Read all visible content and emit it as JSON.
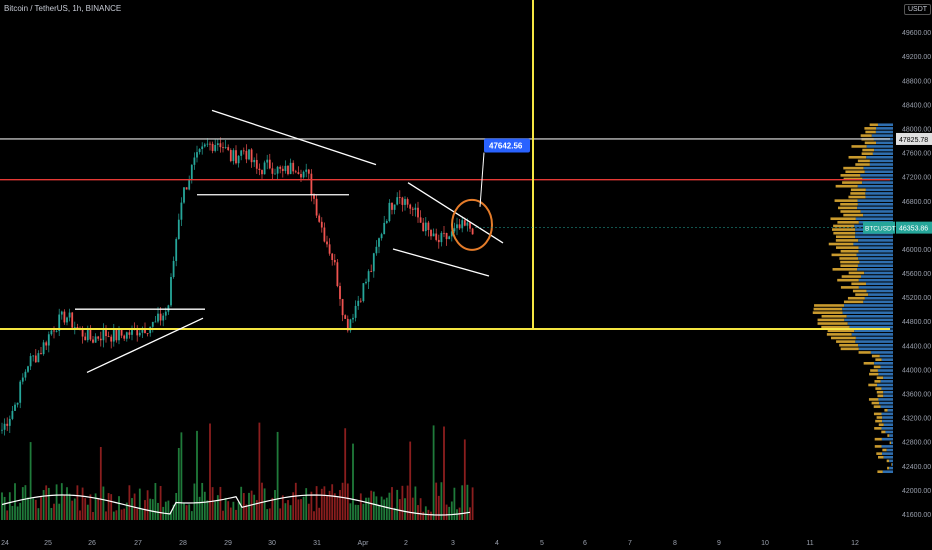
{
  "header": {
    "title": "Bitcoin / TetherUS, 1h, BINANCE",
    "quote_badge": "USDT"
  },
  "chart_data": {
    "type": "candlestick",
    "symbol": "Bitcoin / TetherUS",
    "interval": "1h",
    "exchange": "BINANCE",
    "ylim": [
      41500,
      50000
    ],
    "y_ticks": [
      41600,
      42000,
      42400,
      42800,
      43200,
      43600,
      44000,
      44400,
      44800,
      45200,
      45600,
      46000,
      46400,
      46800,
      47200,
      47600,
      48000,
      48400,
      48800,
      49200,
      49600
    ],
    "x_labels": [
      "24",
      "25",
      "26",
      "27",
      "28",
      "29",
      "30",
      "31",
      "Apr",
      "2",
      "3",
      "4",
      "5",
      "6",
      "7",
      "8",
      "9",
      "10",
      "11",
      "12"
    ],
    "price_path": [
      [
        "24",
        43000
      ],
      [
        "24",
        43400
      ],
      [
        "24",
        44100
      ],
      [
        "25",
        44300
      ],
      [
        "25",
        44700
      ],
      [
        "25",
        44900
      ],
      [
        "25",
        44650
      ],
      [
        "26",
        44500
      ],
      [
        "26",
        44600
      ],
      [
        "26",
        44550
      ],
      [
        "27",
        44600
      ],
      [
        "27",
        44700
      ],
      [
        "27",
        44750
      ],
      [
        "27",
        45000
      ],
      [
        "28",
        46800
      ],
      [
        "28",
        47400
      ],
      [
        "28",
        47700
      ],
      [
        "29",
        47800
      ],
      [
        "29",
        47500
      ],
      [
        "29",
        47650
      ],
      [
        "30",
        47300
      ],
      [
        "30",
        47400
      ],
      [
        "30",
        47250
      ],
      [
        "31",
        47400
      ],
      [
        "31",
        47200
      ],
      [
        "31",
        46400
      ],
      [
        "31",
        45800
      ],
      [
        "Apr",
        44700
      ],
      [
        "Apr",
        45200
      ],
      [
        "Apr",
        45700
      ],
      [
        "2",
        46500
      ],
      [
        "2",
        46950
      ],
      [
        "2",
        46700
      ],
      [
        "2",
        46400
      ],
      [
        "3",
        46100
      ],
      [
        "3",
        46200
      ],
      [
        "3",
        46350
      ],
      [
        "3",
        46353.86
      ]
    ],
    "horizontal_levels": [
      {
        "price": 47825.78,
        "color": "#bdbdbd",
        "label": "47825.78"
      },
      {
        "price": 47150,
        "color": "#e53935"
      },
      {
        "price": 44670,
        "color": "#f5e642"
      }
    ],
    "vertical_line": {
      "x": "4.8",
      "color": "#f5e642"
    },
    "current_price": {
      "value": 46353.86,
      "label": "BTCUSDT",
      "value_label": "46353.86"
    },
    "callout": {
      "value": "47642.56"
    },
    "volume_profile": true
  }
}
